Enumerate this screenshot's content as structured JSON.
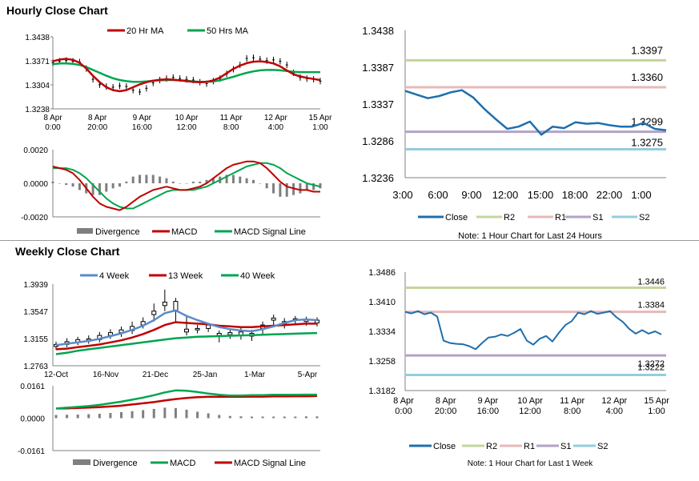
{
  "sections": {
    "hourly_title": "Hourly Close Chart",
    "weekly_title": "Weekly Close Chart"
  },
  "colors": {
    "close": "#1f6fad",
    "r2": "#c3d69b",
    "r1": "#e6b9b8",
    "s1": "#b3a2c7",
    "s2": "#93cddd",
    "ma_red": "#c00000",
    "ma_green": "#00a550",
    "ma_blue": "#5b8bc9",
    "divergence": "#7f7f7f",
    "candle": "#000000"
  },
  "chart_data": [
    {
      "id": "hourly_price",
      "type": "line",
      "title": "Hourly Close Chart",
      "legend": [
        "20 Hr MA",
        "50 Hrs MA"
      ],
      "y_ticks": [
        "1.3438",
        "1.3371",
        "1.3304",
        "1.3238"
      ],
      "ylim": [
        1.3238,
        1.3438
      ],
      "x_ticks": [
        [
          "8 Apr",
          "0:00"
        ],
        [
          "8 Apr",
          "20:00"
        ],
        [
          "9 Apr",
          "16:00"
        ],
        [
          "10 Apr",
          "12:00"
        ],
        [
          "11 Apr",
          "8:00"
        ],
        [
          "12 Apr",
          "4:00"
        ],
        [
          "15 Apr",
          "1:00"
        ]
      ],
      "price_close": [
        1.3366,
        1.337,
        1.3372,
        1.337,
        1.3368,
        1.335,
        1.332,
        1.3305,
        1.33,
        1.3298,
        1.3302,
        1.33,
        1.329,
        1.3285,
        1.3295,
        1.331,
        1.3318,
        1.3322,
        1.3325,
        1.3322,
        1.332,
        1.3318,
        1.3312,
        1.3308,
        1.3315,
        1.3322,
        1.3335,
        1.3348,
        1.336,
        1.3378,
        1.338,
        1.3376,
        1.3372,
        1.3374,
        1.337,
        1.336,
        1.3338,
        1.3325,
        1.3322,
        1.332,
        1.3315
      ],
      "ma20": [
        1.337,
        1.3375,
        1.3377,
        1.3374,
        1.3366,
        1.335,
        1.333,
        1.3312,
        1.3298,
        1.329,
        1.3287,
        1.329,
        1.3298,
        1.3306,
        1.3312,
        1.3316,
        1.3319,
        1.332,
        1.3319,
        1.3317,
        1.3315,
        1.3313,
        1.3312,
        1.3313,
        1.3317,
        1.3325,
        1.3337,
        1.3349,
        1.3358,
        1.3365,
        1.3369,
        1.337,
        1.3368,
        1.3364,
        1.3356,
        1.3345,
        1.3334,
        1.3328,
        1.3324,
        1.3321,
        1.3318
      ],
      "ma50": [
        1.3362,
        1.3364,
        1.3364,
        1.3363,
        1.336,
        1.3354,
        1.3346,
        1.3338,
        1.333,
        1.3323,
        1.3318,
        1.3315,
        1.3313,
        1.3313,
        1.3314,
        1.3316,
        1.3317,
        1.3318,
        1.3318,
        1.3317,
        1.3316,
        1.3314,
        1.3313,
        1.3313,
        1.3314,
        1.3317,
        1.3322,
        1.3327,
        1.3333,
        1.3338,
        1.3342,
        1.3345,
        1.3346,
        1.3346,
        1.3345,
        1.3343,
        1.3341,
        1.334,
        1.334,
        1.334,
        1.334
      ]
    },
    {
      "id": "hourly_macd",
      "type": "bar",
      "legend": [
        "Divergence",
        "MACD",
        "MACD Signal Line"
      ],
      "y_ticks": [
        "0.0020",
        "0.0000",
        "-0.0020"
      ],
      "ylim": [
        -0.002,
        0.002
      ],
      "macd": [
        0.001,
        0.0009,
        0.0008,
        0.0006,
        0.0002,
        -0.0003,
        -0.0008,
        -0.0012,
        -0.0014,
        -0.0015,
        -0.0016,
        -0.0014,
        -0.0011,
        -0.0008,
        -0.0006,
        -0.0004,
        -0.0003,
        -0.0002,
        -0.0003,
        -0.0004,
        -0.0004,
        -0.0003,
        -0.0002,
        0.0,
        0.0003,
        0.0006,
        0.0009,
        0.0011,
        0.0012,
        0.0013,
        0.0013,
        0.0012,
        0.0009,
        0.0005,
        0.0001,
        -0.0002,
        -0.0003,
        -0.0004,
        -0.0004,
        -0.0005,
        -0.0005
      ],
      "signal": [
        0.0009,
        0.0009,
        0.0009,
        0.0008,
        0.0006,
        0.0003,
        -0.0001,
        -0.0005,
        -0.0009,
        -0.0012,
        -0.0014,
        -0.0015,
        -0.0015,
        -0.0013,
        -0.0011,
        -0.0009,
        -0.0007,
        -0.0005,
        -0.0004,
        -0.0004,
        -0.0004,
        -0.0004,
        -0.0003,
        -0.0002,
        0.0,
        0.0002,
        0.0004,
        0.0006,
        0.0008,
        0.001,
        0.0011,
        0.0012,
        0.0012,
        0.0011,
        0.0009,
        0.0006,
        0.0004,
        0.0002,
        0.0,
        -0.0001,
        -0.0002
      ],
      "divergence": [
        0.0001,
        0.0,
        -0.0001,
        -0.0002,
        -0.0004,
        -0.0006,
        -0.0007,
        -0.0007,
        -0.0005,
        -0.0003,
        -0.0002,
        0.0001,
        0.0004,
        0.0005,
        0.0005,
        0.0005,
        0.0004,
        0.0003,
        0.0001,
        0.0,
        0.0,
        0.0001,
        0.0001,
        0.0002,
        0.0003,
        0.0004,
        0.0005,
        0.0005,
        0.0004,
        0.0003,
        0.0002,
        0.0,
        -0.0003,
        -0.0006,
        -0.0008,
        -0.0008,
        -0.0007,
        -0.0006,
        -0.0004,
        -0.0004,
        -0.0003
      ]
    },
    {
      "id": "last24h",
      "type": "line",
      "y_ticks": [
        "1.3438",
        "1.3387",
        "1.3337",
        "1.3286",
        "1.3236"
      ],
      "ylim": [
        1.3236,
        1.3438
      ],
      "x_ticks": [
        "3:00",
        "6:00",
        "9:00",
        "12:00",
        "15:00",
        "18:00",
        "22:00",
        "1:00"
      ],
      "close": [
        1.3355,
        1.335,
        1.3345,
        1.3348,
        1.3353,
        1.3356,
        1.3346,
        1.333,
        1.3316,
        1.3303,
        1.3306,
        1.3313,
        1.3295,
        1.3306,
        1.3304,
        1.3312,
        1.331,
        1.3311,
        1.3308,
        1.3306,
        1.3306,
        1.3311,
        1.3303,
        1.3301
      ],
      "levels": {
        "R2": 1.3397,
        "R1": 1.336,
        "S1": 1.3299,
        "S2": 1.3275
      },
      "level_labels": [
        "1.3397",
        "1.3360",
        "1.3299",
        "1.3275"
      ],
      "legend": [
        "Close",
        "R2",
        "R1",
        "S1",
        "S2"
      ],
      "note": "Note: 1 Hour Chart for Last 24 Hours"
    },
    {
      "id": "weekly_price",
      "type": "line",
      "title": "Weekly Close Chart",
      "legend": [
        "4 Week",
        "13 Week",
        "40 Week"
      ],
      "y_ticks": [
        "1.3939",
        "1.3547",
        "1.3155",
        "1.2763"
      ],
      "ylim": [
        1.2763,
        1.3939
      ],
      "x_ticks": [
        "12-Oct",
        "16-Nov",
        "21-Dec",
        "25-Jan",
        "1-Mar",
        "5-Apr"
      ],
      "candles": [
        {
          "o": 1.304,
          "c": 1.307,
          "h": 1.311,
          "l": 1.299
        },
        {
          "o": 1.307,
          "c": 1.311,
          "h": 1.316,
          "l": 1.303
        },
        {
          "o": 1.31,
          "c": 1.314,
          "h": 1.318,
          "l": 1.306
        },
        {
          "o": 1.313,
          "c": 1.315,
          "h": 1.32,
          "l": 1.308
        },
        {
          "o": 1.314,
          "c": 1.32,
          "h": 1.325,
          "l": 1.31
        },
        {
          "o": 1.32,
          "c": 1.324,
          "h": 1.329,
          "l": 1.315
        },
        {
          "o": 1.324,
          "c": 1.328,
          "h": 1.333,
          "l": 1.318
        },
        {
          "o": 1.327,
          "c": 1.333,
          "h": 1.34,
          "l": 1.322
        },
        {
          "o": 1.335,
          "c": 1.34,
          "h": 1.346,
          "l": 1.33
        },
        {
          "o": 1.35,
          "c": 1.355,
          "h": 1.366,
          "l": 1.34
        },
        {
          "o": 1.363,
          "c": 1.368,
          "h": 1.386,
          "l": 1.355
        },
        {
          "o": 1.355,
          "c": 1.369,
          "h": 1.374,
          "l": 1.34
        },
        {
          "o": 1.325,
          "c": 1.329,
          "h": 1.348,
          "l": 1.32
        },
        {
          "o": 1.328,
          "c": 1.33,
          "h": 1.335,
          "l": 1.323
        },
        {
          "o": 1.33,
          "c": 1.335,
          "h": 1.338,
          "l": 1.325
        },
        {
          "o": 1.32,
          "c": 1.323,
          "h": 1.327,
          "l": 1.31
        },
        {
          "o": 1.321,
          "c": 1.324,
          "h": 1.33,
          "l": 1.315
        },
        {
          "o": 1.32,
          "c": 1.325,
          "h": 1.332,
          "l": 1.314
        },
        {
          "o": 1.319,
          "c": 1.323,
          "h": 1.328,
          "l": 1.312
        },
        {
          "o": 1.33,
          "c": 1.335,
          "h": 1.34,
          "l": 1.32
        },
        {
          "o": 1.342,
          "c": 1.345,
          "h": 1.35,
          "l": 1.335
        },
        {
          "o": 1.337,
          "c": 1.34,
          "h": 1.345,
          "l": 1.33
        },
        {
          "o": 1.342,
          "c": 1.344,
          "h": 1.348,
          "l": 1.335
        },
        {
          "o": 1.34,
          "c": 1.343,
          "h": 1.347,
          "l": 1.334
        },
        {
          "o": 1.338,
          "c": 1.342,
          "h": 1.346,
          "l": 1.333
        }
      ],
      "ma4": [
        1.306,
        1.308,
        1.31,
        1.312,
        1.315,
        1.319,
        1.323,
        1.328,
        1.334,
        1.342,
        1.352,
        1.356,
        1.348,
        1.342,
        1.337,
        1.332,
        1.329,
        1.327,
        1.326,
        1.329,
        1.333,
        1.338,
        1.342,
        1.343,
        1.342
      ],
      "ma13": [
        1.3,
        1.301,
        1.303,
        1.305,
        1.307,
        1.31,
        1.313,
        1.317,
        1.322,
        1.328,
        1.335,
        1.339,
        1.338,
        1.337,
        1.336,
        1.334,
        1.333,
        1.332,
        1.332,
        1.333,
        1.334,
        1.335,
        1.336,
        1.337,
        1.337
      ],
      "ma40": [
        1.293,
        1.295,
        1.298,
        1.3,
        1.302,
        1.304,
        1.306,
        1.308,
        1.31,
        1.312,
        1.314,
        1.316,
        1.317,
        1.318,
        1.3185,
        1.319,
        1.3195,
        1.32,
        1.3205,
        1.321,
        1.3215,
        1.322,
        1.3225,
        1.323,
        1.3235
      ]
    },
    {
      "id": "weekly_macd",
      "type": "bar",
      "legend": [
        "Divergence",
        "MACD",
        "MACD Signal Line"
      ],
      "y_ticks": [
        "0.0161",
        "0.0000",
        "-0.0161"
      ],
      "ylim": [
        -0.0161,
        0.0161
      ],
      "macd": [
        0.0048,
        0.0052,
        0.0056,
        0.006,
        0.0066,
        0.0074,
        0.0082,
        0.0092,
        0.0102,
        0.0114,
        0.0128,
        0.0138,
        0.0136,
        0.013,
        0.0122,
        0.0116,
        0.0112,
        0.0112,
        0.0114,
        0.0114,
        0.0116,
        0.0116,
        0.0116,
        0.0117,
        0.0117
      ],
      "signal": [
        0.0048,
        0.0049,
        0.0051,
        0.0053,
        0.0055,
        0.0058,
        0.0062,
        0.0068,
        0.0074,
        0.008,
        0.0088,
        0.0095,
        0.01,
        0.0104,
        0.0106,
        0.0106,
        0.0106,
        0.0106,
        0.0107,
        0.0107,
        0.0108,
        0.0108,
        0.0109,
        0.0109,
        0.011
      ],
      "divergence": [
        0.0016,
        0.0017,
        0.0018,
        0.002,
        0.0022,
        0.0026,
        0.003,
        0.0035,
        0.004,
        0.0046,
        0.0052,
        0.005,
        0.0042,
        0.0032,
        0.0024,
        0.0016,
        0.0011,
        0.0009,
        0.0008,
        0.0008,
        0.0008,
        0.0008,
        0.0008,
        0.0009,
        0.0009
      ]
    },
    {
      "id": "last_week",
      "type": "line",
      "y_ticks": [
        "1.3486",
        "1.3410",
        "1.3334",
        "1.3258",
        "1.3182"
      ],
      "ylim": [
        1.3182,
        1.3486
      ],
      "x_ticks": [
        [
          "8 Apr",
          "0:00"
        ],
        [
          "8 Apr",
          "20:00"
        ],
        [
          "9 Apr",
          "16:00"
        ],
        [
          "10 Apr",
          "12:00"
        ],
        [
          "11 Apr",
          "8:00"
        ],
        [
          "12 Apr",
          "4:00"
        ],
        [
          "15 Apr",
          "1:00"
        ]
      ],
      "close": [
        1.3384,
        1.338,
        1.3386,
        1.3378,
        1.3382,
        1.3372,
        1.331,
        1.3304,
        1.3302,
        1.3301,
        1.3296,
        1.3288,
        1.3304,
        1.3318,
        1.332,
        1.3326,
        1.3322,
        1.333,
        1.334,
        1.331,
        1.33,
        1.3315,
        1.3322,
        1.3308,
        1.333,
        1.335,
        1.336,
        1.3382,
        1.3378,
        1.3386,
        1.3379,
        1.3382,
        1.3386,
        1.337,
        1.3358,
        1.334,
        1.3328,
        1.3337,
        1.3328,
        1.3334,
        1.3326
      ],
      "levels": {
        "R2": 1.3446,
        "R1": 1.3384,
        "S1": 1.3272,
        "S2": 1.3222
      },
      "level_labels": [
        "1.3446",
        "1.3384",
        "1.3272",
        "1.3222"
      ],
      "legend": [
        "Close",
        "R2",
        "R1",
        "S1",
        "S2"
      ],
      "note": "Note: 1 Hour Chart for Last 1 Week"
    }
  ]
}
